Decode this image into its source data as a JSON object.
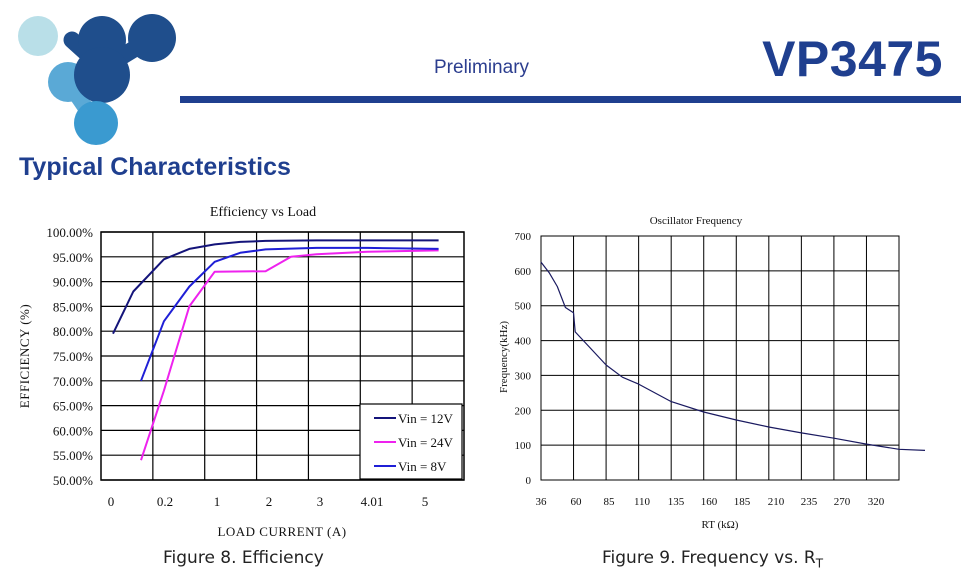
{
  "header": {
    "preliminary": "Preliminary",
    "part_number": "VP3475"
  },
  "section": {
    "title": "Typical Characteristics"
  },
  "captions": {
    "figure8": "Figure 8. Efficiency",
    "figure9_prefix": "Figure 9. Frequency vs. R",
    "figure9_sub": "T"
  },
  "colors": {
    "brand_blue": "#1f3f8f",
    "logo_light": "#b9dfe8",
    "logo_mid": "#5aa9d6",
    "logo_dark": "#1f4e8c",
    "vin12": "#14147a",
    "vin24": "#ee22ee",
    "vin8": "#1f1fd6"
  },
  "chart_data": [
    {
      "type": "line",
      "title": "Efficiency vs Load",
      "xlabel": "LOAD CURRENT (A)",
      "ylabel": "EFFICIENCY (%)",
      "x_ticks": [
        "0",
        "0.2",
        "1",
        "2",
        "3",
        "4.01",
        "5"
      ],
      "y_ticks": [
        "50.00%",
        "55.00%",
        "60.00%",
        "65.00%",
        "70.00%",
        "75.00%",
        "80.00%",
        "85.00%",
        "90.00%",
        "95.00%",
        "100.00%"
      ],
      "ylim": [
        50,
        100
      ],
      "x_scale": "categorical (unevenly spaced load points)",
      "grid": true,
      "legend_position": "bottom-right",
      "series": [
        {
          "name": "Vin = 12V",
          "color": "#14147a",
          "points": [
            [
              0.0,
              79.5
            ],
            [
              0.4,
              88
            ],
            [
              1.0,
              94.5
            ],
            [
              1.5,
              96.6
            ],
            [
              2.0,
              97.5
            ],
            [
              2.5,
              98.0
            ],
            [
              3.0,
              98.2
            ],
            [
              4.0,
              98.3
            ],
            [
              5.0,
              98.3
            ],
            [
              6.4,
              98.3
            ]
          ]
        },
        {
          "name": "Vin = 24V",
          "color": "#ee22ee",
          "points": [
            [
              0.55,
              54.0
            ],
            [
              1.0,
              68.0
            ],
            [
              1.5,
              85.0
            ],
            [
              2.0,
              92.0
            ],
            [
              3.0,
              92.1
            ],
            [
              3.5,
              95.0
            ],
            [
              4.0,
              95.5
            ],
            [
              5.0,
              96.0
            ],
            [
              6.4,
              96.3
            ]
          ]
        },
        {
          "name": "Vin = 8V",
          "color": "#1f1fd6",
          "points": [
            [
              0.55,
              70.0
            ],
            [
              1.0,
              82.0
            ],
            [
              1.5,
              89.0
            ],
            [
              2.0,
              94.0
            ],
            [
              2.5,
              95.8
            ],
            [
              3.0,
              96.5
            ],
            [
              4.0,
              96.8
            ],
            [
              5.0,
              96.8
            ],
            [
              6.4,
              96.6
            ]
          ]
        }
      ]
    },
    {
      "type": "line",
      "title": "Oscillator Frequency",
      "xlabel": "RT (kΩ)",
      "ylabel": "Frequency(kHz)",
      "x_ticks": [
        "36",
        "60",
        "85",
        "110",
        "135",
        "160",
        "185",
        "210",
        "235",
        "270",
        "320"
      ],
      "y_ticks": [
        "0",
        "100",
        "200",
        "300",
        "400",
        "500",
        "600",
        "700"
      ],
      "ylim": [
        0,
        700
      ],
      "x_scale": "categorical (tick labels unevenly spaced)",
      "grid": true,
      "series": [
        {
          "name": "Frequency",
          "color": "#1a1a60",
          "points": [
            [
              0.0,
              625
            ],
            [
              0.25,
              595
            ],
            [
              0.5,
              555
            ],
            [
              0.75,
              495
            ],
            [
              1.0,
              480
            ],
            [
              1.05,
              425
            ],
            [
              1.5,
              380
            ],
            [
              2.0,
              330
            ],
            [
              2.5,
              295
            ],
            [
              3.0,
              275
            ],
            [
              4.0,
              225
            ],
            [
              5.0,
              195
            ],
            [
              6.0,
              172
            ],
            [
              7.0,
              152
            ],
            [
              8.0,
              135
            ],
            [
              9.0,
              120
            ],
            [
              10.0,
              103
            ],
            [
              11.0,
              88
            ],
            [
              11.8,
              85
            ]
          ]
        }
      ]
    }
  ]
}
